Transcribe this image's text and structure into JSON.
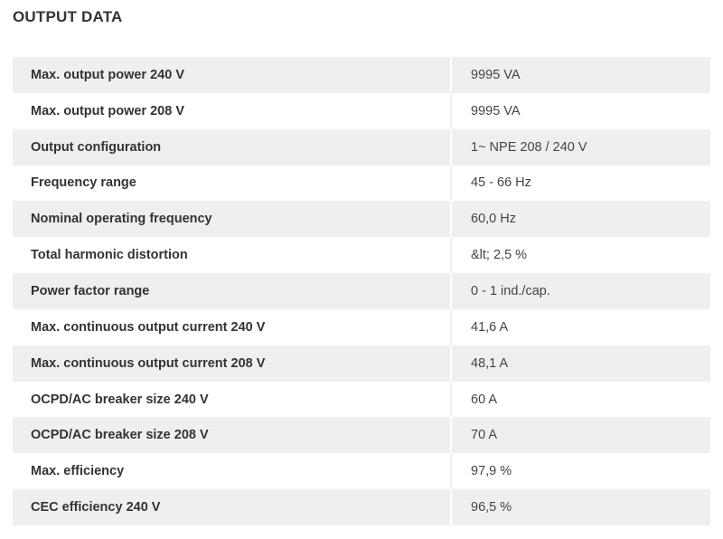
{
  "section": {
    "title": "OUTPUT DATA"
  },
  "rows": [
    {
      "label": "Max. output power 240 V",
      "value": "9995 VA"
    },
    {
      "label": "Max. output power 208 V",
      "value": "9995 VA"
    },
    {
      "label": "Output configuration",
      "value": "1~ NPE 208 / 240 V"
    },
    {
      "label": "Frequency range",
      "value": "45 - 66 Hz"
    },
    {
      "label": "Nominal operating frequency",
      "value": "60,0 Hz"
    },
    {
      "label": "Total harmonic distortion",
      "value": "&lt; 2,5 %"
    },
    {
      "label": "Power factor range",
      "value": "0 - 1 ind./cap."
    },
    {
      "label": "Max. continuous output current 240 V",
      "value": "41,6 A"
    },
    {
      "label": "Max. continuous output current 208 V",
      "value": "48,1 A"
    },
    {
      "label": "OCPD/AC breaker size 240 V",
      "value": "60 A"
    },
    {
      "label": "OCPD/AC breaker size 208 V",
      "value": "70 A"
    },
    {
      "label": "Max. efficiency",
      "value": "97,9 %"
    },
    {
      "label": "CEC efficiency 240 V",
      "value": "96,5 %"
    }
  ]
}
